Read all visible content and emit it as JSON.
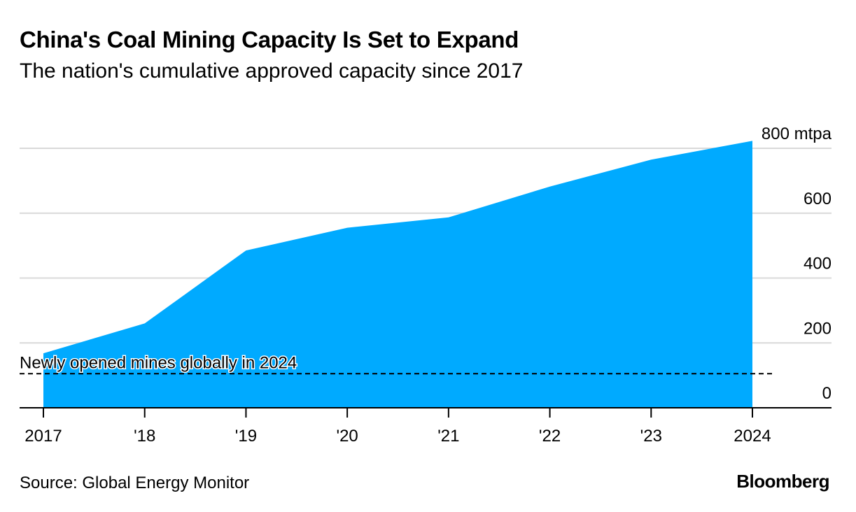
{
  "header": {
    "title": "China's Coal Mining Capacity Is Set to Expand",
    "subtitle": "The nation's cumulative approved capacity since 2017"
  },
  "footer": {
    "source": "Source: Global Energy Monitor",
    "brand": "Bloomberg"
  },
  "colors": {
    "area": "#00aaff",
    "grid": "#d9d9d9",
    "axis": "#000000",
    "reference_line": "#000000"
  },
  "chart_data": {
    "type": "area",
    "title": "China's Coal Mining Capacity Is Set to Expand",
    "subtitle": "The nation's cumulative approved capacity since 2017",
    "x": [
      2017,
      2018,
      2019,
      2020,
      2021,
      2022,
      2023,
      2024
    ],
    "x_tick_labels": [
      "2017",
      "'18",
      "'19",
      "'20",
      "'21",
      "'22",
      "'23",
      "2024"
    ],
    "series": [
      {
        "values": [
          168,
          260,
          485,
          555,
          587,
          682,
          765,
          823
        ]
      }
    ],
    "y_ticks": [
      0,
      200,
      400,
      600,
      800
    ],
    "y_tick_labels": [
      "0",
      "200",
      "400",
      "600",
      "800 mtpa"
    ],
    "ylim": [
      0,
      800
    ],
    "xlim": [
      2017,
      2024.8
    ],
    "y_axis_side": "right",
    "grid": true,
    "annotations": [
      {
        "type": "hline",
        "y": 105,
        "style": "dashed",
        "label": "Newly opened mines globally in 2024"
      }
    ]
  }
}
